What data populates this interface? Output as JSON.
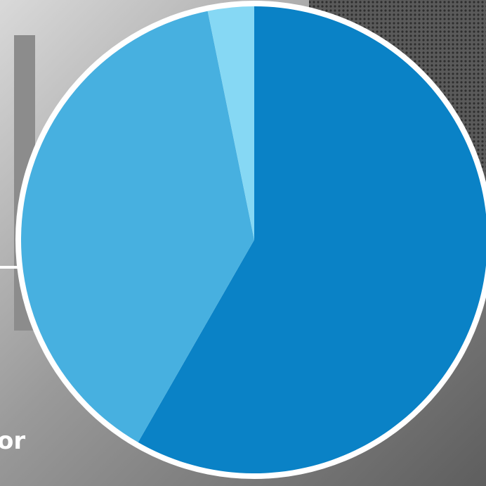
{
  "chart_data": {
    "type": "pie",
    "values": [
      58.3,
      38.5,
      3.2
    ],
    "colors": [
      "#0a82c6",
      "#47b0e0",
      "#86d8f4"
    ],
    "start_angle": 0,
    "direction": "clockwise"
  },
  "background_text": "or"
}
